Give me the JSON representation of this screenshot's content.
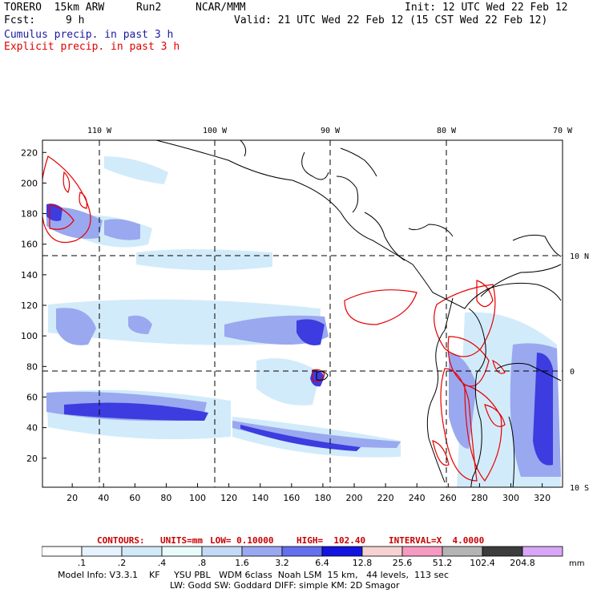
{
  "header": {
    "model": "TORERO  15km ARW",
    "run": "Run2",
    "org": "NCAR/MMM",
    "init": "Init: 12 UTC Wed 22 Feb 12",
    "fcst_label": "Fcst:",
    "fcst_value": "9 h",
    "valid": "Valid: 21 UTC Wed 22 Feb 12 (15 CST Wed 22 Feb 12)",
    "field1": "Cumulus precip. in past 3 h",
    "field2": "Explicit precip. in past 3 h",
    "field1_color": "#1a1aa0",
    "field2_color": "#e00000"
  },
  "chart_data": {
    "type": "heatmap",
    "lon_labels": [
      "110 W",
      "100 W",
      "90 W",
      "80 W",
      "70 W"
    ],
    "lat_labels": [
      "10 N",
      "0",
      "10 S"
    ],
    "x_ticks": [
      "20",
      "40",
      "60",
      "80",
      "100",
      "120",
      "140",
      "160",
      "180",
      "200",
      "220",
      "240",
      "260",
      "280",
      "300",
      "320"
    ],
    "y_ticks": [
      "20",
      "40",
      "60",
      "80",
      "100",
      "120",
      "140",
      "160",
      "180",
      "200",
      "220"
    ],
    "xlim": [
      1,
      333
    ],
    "ylim": [
      1,
      228
    ],
    "contours": {
      "label": "CONTOURS:",
      "units": "UNITS=mm",
      "low": "LOW= 0.10000",
      "high": "HIGH=  102.40",
      "interval": "INTERVAL=X  4.0000"
    },
    "colorbar": {
      "tick_labels": [
        ".1",
        ".2",
        ".4",
        ".8",
        "1.6",
        "3.2",
        "6.4",
        "12.8",
        "25.6",
        "51.2",
        "102.4",
        "204.8"
      ],
      "colors": [
        "#ffffff",
        "#e6f2ff",
        "#d2e9fa",
        "#e8fbfb",
        "#c4d9f5",
        "#9aa8f0",
        "#6470ee",
        "#1414e0",
        "#f7d2d2",
        "#f59ac0",
        "#b4b4b4",
        "#3c3c3c",
        "#d8a6f7"
      ],
      "unit": "mm"
    }
  },
  "footer": {
    "line1": "Model Info: V3.3.1    KF     YSU PBL   WDM 6class  Noah LSM  15 km,   44 levels,  113 sec",
    "line2": "LW: Godd SW: Goddard DIFF: simple KM: 2D Smagor"
  }
}
